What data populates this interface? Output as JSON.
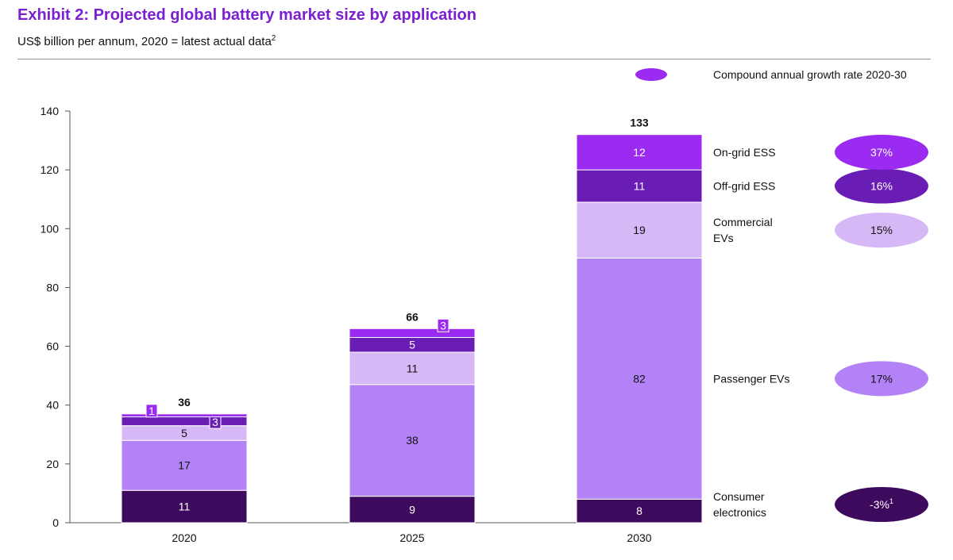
{
  "title": "Exhibit 2: Projected global battery market size by application",
  "subtitle": "US$ billion per annum, 2020 = latest actual data",
  "subtitle_sup": "2",
  "legend_label": "Compound annual growth rate 2020-30",
  "chart_data": {
    "type": "bar",
    "stacked": true,
    "categories": [
      "2020",
      "2025",
      "2030"
    ],
    "ylim": [
      0,
      140
    ],
    "yticks": [
      0,
      20,
      40,
      60,
      80,
      100,
      120,
      140
    ],
    "totals": [
      "36",
      "66",
      "133"
    ],
    "series": [
      {
        "name": "Consumer electronics",
        "label_lines": [
          "Consumer",
          "electronics"
        ],
        "values": [
          11,
          9,
          8
        ],
        "color": "#3d0a5e",
        "text_color": "#ffffff",
        "cagr": "-3%",
        "cagr_sup": "1",
        "cagr_color": "#3d0a5e",
        "cagr_text_color": "#ffffff"
      },
      {
        "name": "Passenger EVs",
        "label_lines": [
          "Passenger EVs"
        ],
        "values": [
          17,
          38,
          82
        ],
        "color": "#b482f7",
        "text_color": "#111111",
        "cagr": "17%",
        "cagr_sup": "",
        "cagr_color": "#b482f7",
        "cagr_text_color": "#111111"
      },
      {
        "name": "Commercial EVs",
        "label_lines": [
          "Commercial",
          "EVs"
        ],
        "values": [
          5,
          11,
          19
        ],
        "color": "#d7b8f7",
        "text_color": "#111111",
        "cagr": "15%",
        "cagr_sup": "",
        "cagr_color": "#d7b8f7",
        "cagr_text_color": "#111111"
      },
      {
        "name": "Off-grid ESS",
        "label_lines": [
          "Off-grid ESS"
        ],
        "values": [
          3,
          5,
          11
        ],
        "color": "#6a1db5",
        "text_color": "#ffffff",
        "cagr": "16%",
        "cagr_sup": "",
        "cagr_color": "#6a1db5",
        "cagr_text_color": "#ffffff"
      },
      {
        "name": "On-grid ESS",
        "label_lines": [
          "On-grid ESS"
        ],
        "values": [
          1,
          3,
          12
        ],
        "color": "#9b2bf0",
        "text_color": "#ffffff",
        "cagr": "37%",
        "cagr_sup": "",
        "cagr_color": "#9b2bf0",
        "cagr_text_color": "#ffffff"
      }
    ]
  }
}
